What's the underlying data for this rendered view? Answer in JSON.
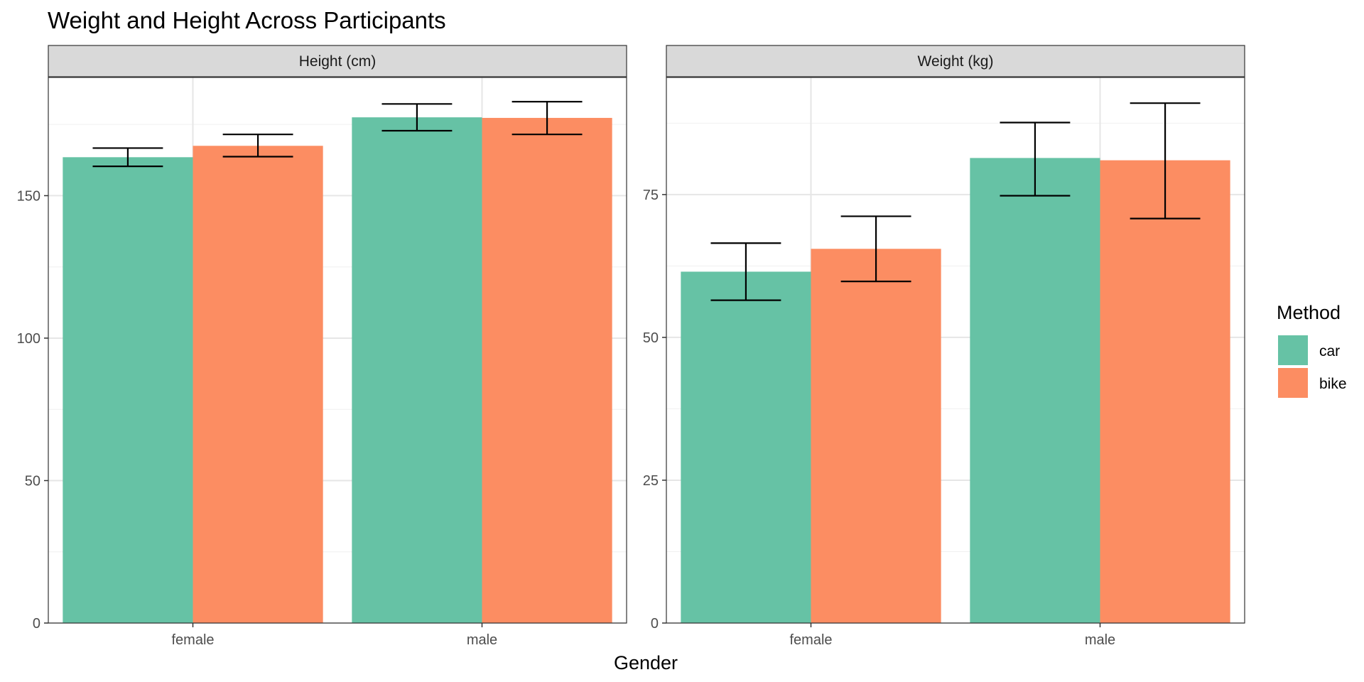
{
  "title": "Weight and Height Across Participants",
  "xlabel": "Gender",
  "legend": {
    "title": "Method",
    "position": "right",
    "items": [
      {
        "label": "car",
        "color": "#66c2a5"
      },
      {
        "label": "bike",
        "color": "#fc8d62"
      }
    ]
  },
  "chart_data": [
    {
      "type": "bar",
      "panel": "Height (cm)",
      "categories": [
        "female",
        "male"
      ],
      "series": [
        {
          "name": "car",
          "color": "#66c2a5",
          "values": [
            163.5,
            177.5
          ],
          "error_low": [
            160.3,
            172.8
          ],
          "error_high": [
            166.7,
            182.2
          ]
        },
        {
          "name": "bike",
          "color": "#fc8d62",
          "values": [
            167.5,
            177.3
          ],
          "error_low": [
            163.7,
            171.5
          ],
          "error_high": [
            171.5,
            183.0
          ]
        }
      ],
      "yticks": [
        0,
        50,
        100,
        150
      ],
      "ylim": [
        0,
        191.5
      ],
      "grid": true
    },
    {
      "type": "bar",
      "panel": "Weight (kg)",
      "categories": [
        "female",
        "male"
      ],
      "series": [
        {
          "name": "car",
          "color": "#66c2a5",
          "values": [
            61.5,
            81.4
          ],
          "error_low": [
            56.5,
            74.8
          ],
          "error_high": [
            66.5,
            87.6
          ]
        },
        {
          "name": "bike",
          "color": "#fc8d62",
          "values": [
            65.5,
            81.0
          ],
          "error_low": [
            59.8,
            70.8
          ],
          "error_high": [
            71.2,
            91.0
          ]
        }
      ],
      "yticks": [
        0,
        25,
        50,
        75
      ],
      "ylim": [
        0,
        95.5
      ],
      "grid": true
    }
  ]
}
